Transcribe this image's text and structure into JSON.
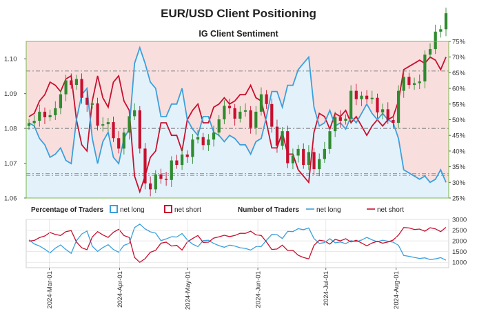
{
  "title": "EUR/USD Client Positioning",
  "subtitle": "IG Client Sentiment",
  "colors": {
    "net_long": "#3aa0dc",
    "net_short": "#c8102e",
    "long_fill": "#e3f1fa",
    "short_fill": "#f9dede",
    "candle_up": "#2e8b2e",
    "candle_down": "#c8102e",
    "frame": "#7ab84a"
  },
  "chart_data": [
    {
      "type": "candlestick+area",
      "title": "IG Client Sentiment",
      "price_axis": {
        "range": [
          1.06,
          1.105
        ],
        "ticks": [
          "1.06",
          "1.07",
          "1.08",
          "1.09",
          "1.10"
        ]
      },
      "percent_axis": {
        "range": [
          25,
          75
        ],
        "ticks": [
          "25%",
          "30%",
          "35%",
          "40%",
          "45%",
          "50%",
          "55%",
          "60%",
          "65%",
          "70%",
          "75%"
        ]
      },
      "reference_lines_price": [
        1.0665,
        1.067,
        1.08,
        1.0965
      ],
      "dates": [
        "2024-02-21",
        "2024-02-23",
        "2024-02-26",
        "2024-02-28",
        "2024-03-01",
        "2024-03-04",
        "2024-03-06",
        "2024-03-08",
        "2024-03-11",
        "2024-03-13",
        "2024-03-15",
        "2024-03-18",
        "2024-03-20",
        "2024-03-22",
        "2024-03-25",
        "2024-03-27",
        "2024-03-29",
        "2024-04-01",
        "2024-04-03",
        "2024-04-05",
        "2024-04-08",
        "2024-04-10",
        "2024-04-12",
        "2024-04-15",
        "2024-04-17",
        "2024-04-19",
        "2024-04-22",
        "2024-04-24",
        "2024-04-26",
        "2024-04-29",
        "2024-05-01",
        "2024-05-03",
        "2024-05-06",
        "2024-05-08",
        "2024-05-10",
        "2024-05-13",
        "2024-05-15",
        "2024-05-17",
        "2024-05-20",
        "2024-05-22",
        "2024-05-24",
        "2024-05-27",
        "2024-05-29",
        "2024-05-31",
        "2024-06-03",
        "2024-06-05",
        "2024-06-07",
        "2024-06-10",
        "2024-06-12",
        "2024-06-14",
        "2024-06-17",
        "2024-06-19",
        "2024-06-21",
        "2024-06-24",
        "2024-06-26",
        "2024-06-28",
        "2024-07-01",
        "2024-07-03",
        "2024-07-05",
        "2024-07-08",
        "2024-07-10",
        "2024-07-12",
        "2024-07-15",
        "2024-07-17",
        "2024-07-19",
        "2024-07-22",
        "2024-07-24",
        "2024-07-26",
        "2024-07-29",
        "2024-07-31",
        "2024-08-02",
        "2024-08-05",
        "2024-08-07",
        "2024-08-09",
        "2024-08-12",
        "2024-08-14",
        "2024-08-16",
        "2024-08-19",
        "2024-08-21",
        "2024-08-23"
      ],
      "close": [
        1.0815,
        1.0822,
        1.0848,
        1.0832,
        1.0838,
        1.0858,
        1.0898,
        1.0938,
        1.0925,
        1.0942,
        1.0888,
        1.0868,
        1.0872,
        1.0808,
        1.0812,
        1.0818,
        1.0772,
        1.0742,
        1.0788,
        1.0835,
        1.0852,
        1.0742,
        1.0642,
        1.0625,
        1.0668,
        1.0655,
        1.0652,
        1.0708,
        1.0695,
        1.0725,
        1.0718,
        1.0768,
        1.0775,
        1.0752,
        1.0768,
        1.0788,
        1.0826,
        1.0865,
        1.0858,
        1.0828,
        1.0848,
        1.0852,
        1.0802,
        1.0848,
        1.0898,
        1.087,
        1.0805,
        1.075,
        1.0792,
        1.07,
        1.0722,
        1.0741,
        1.0695,
        1.0732,
        1.0683,
        1.0712,
        1.0741,
        1.0792,
        1.0832,
        1.0822,
        1.0828,
        1.0908,
        1.0884,
        1.0894,
        1.0884,
        1.0888,
        1.0846,
        1.0855,
        1.0824,
        1.0816,
        1.0908,
        1.0948,
        1.0925,
        1.093,
        1.0935,
        1.1012,
        1.1028,
        1.1078,
        1.1085,
        1.1131
      ],
      "net_long_pct": [
        49,
        48,
        44,
        42,
        38,
        39,
        41,
        37,
        36,
        50,
        58,
        60,
        44,
        36,
        43,
        46,
        38,
        36,
        44,
        47,
        68,
        73,
        68,
        62,
        60,
        51,
        51,
        55,
        55,
        60,
        50,
        47,
        45,
        51,
        51,
        46,
        45,
        43,
        45,
        44,
        42,
        42,
        39,
        43,
        44,
        51,
        59,
        59,
        54,
        61,
        61,
        66,
        68,
        70,
        54,
        48,
        49,
        53,
        48,
        49,
        47,
        51,
        49,
        52,
        55,
        52,
        50,
        52,
        50,
        49,
        44,
        34,
        33,
        32,
        31,
        32,
        30,
        31,
        34,
        30
      ],
      "net_short_pct": [
        51,
        52,
        56,
        58,
        62,
        61,
        59,
        63,
        64,
        50,
        42,
        40,
        56,
        64,
        57,
        54,
        62,
        64,
        56,
        53,
        32,
        27,
        32,
        38,
        40,
        49,
        49,
        45,
        45,
        40,
        50,
        53,
        55,
        49,
        49,
        54,
        55,
        57,
        55,
        56,
        58,
        58,
        61,
        57,
        56,
        49,
        41,
        41,
        46,
        39,
        39,
        34,
        32,
        30,
        46,
        52,
        51,
        47,
        52,
        51,
        53,
        49,
        51,
        48,
        45,
        48,
        50,
        48,
        50,
        51,
        56,
        66,
        67,
        68,
        69,
        68,
        70,
        69,
        66,
        70
      ]
    },
    {
      "type": "line",
      "title": "Number of Traders",
      "y_axis": {
        "range": [
          750,
          3000
        ],
        "ticks": [
          "1000",
          "1500",
          "2000",
          "2500",
          "3000"
        ]
      },
      "x_tick_labels": [
        "2024-Mar-01",
        "2024-Apr-01",
        "2024-May-01",
        "2024-Jun-01",
        "2024-Jul-01",
        "2024-Aug-01"
      ],
      "series": [
        {
          "name": "net long",
          "values": [
            2050,
            1860,
            1760,
            1610,
            1440,
            1660,
            1810,
            1600,
            1420,
            2010,
            2320,
            2460,
            1750,
            1510,
            1690,
            1820,
            1600,
            1470,
            1790,
            1880,
            2620,
            2780,
            2560,
            2420,
            2360,
            2010,
            2090,
            2190,
            2180,
            2340,
            2050,
            1850,
            1730,
            2010,
            2030,
            1880,
            1780,
            1700,
            1800,
            1760,
            1680,
            1650,
            1570,
            1730,
            1740,
            2030,
            2300,
            2290,
            2110,
            2440,
            2430,
            2570,
            2520,
            2600,
            2110,
            1880,
            1920,
            2100,
            1910,
            1950,
            1870,
            2010,
            1960,
            2040,
            2160,
            2050,
            1960,
            2030,
            1980,
            1940,
            1790,
            1320,
            1280,
            1230,
            1180,
            1210,
            1130,
            1160,
            1220,
            1100
          ]
        },
        {
          "name": "net short",
          "values": [
            1990,
            2020,
            2150,
            2230,
            2390,
            2300,
            2250,
            2430,
            2480,
            1950,
            1680,
            1590,
            2180,
            2430,
            2280,
            2160,
            2400,
            2540,
            2250,
            2160,
            1230,
            1000,
            1170,
            1470,
            1560,
            1890,
            1940,
            1760,
            1790,
            1570,
            1950,
            2110,
            2250,
            1930,
            1940,
            2130,
            2190,
            2260,
            2200,
            2250,
            2350,
            2350,
            2450,
            2280,
            2250,
            1950,
            1600,
            1620,
            1800,
            1550,
            1560,
            1330,
            1230,
            1160,
            1790,
            2030,
            1990,
            1850,
            2070,
            2000,
            2100,
            1950,
            2030,
            1900,
            1770,
            1900,
            1980,
            1890,
            1950,
            2040,
            2270,
            2620,
            2600,
            2530,
            2550,
            2450,
            2610,
            2560,
            2430,
            2630
          ]
        }
      ]
    }
  ],
  "legend": {
    "pct_heading": "Percentage of Traders",
    "pct_long": "net long",
    "pct_short": "net short",
    "num_heading": "Number of Traders",
    "num_long": "net long",
    "num_short": "net short"
  }
}
